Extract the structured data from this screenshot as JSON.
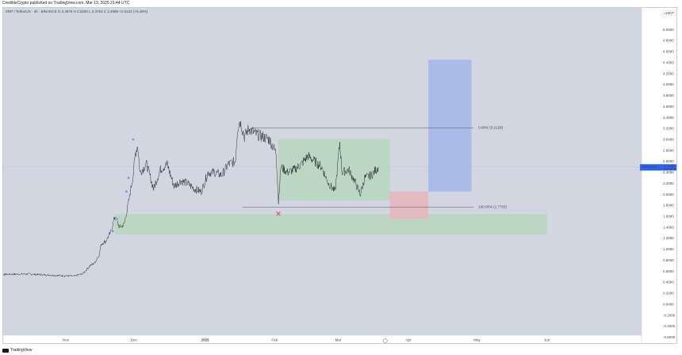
{
  "header": {
    "published_by": "CredibleCrypto published on TradingView.com, Mar 19, 2025 21:44 UTC",
    "symbol_line": "XRP / TetherUS · 4h · BINANCE",
    "ohlc": "O 2.4976  H 2.5200  L 2.4763  C 2.4988  +0.0122 (+0.49%)"
  },
  "footer": {
    "brand": "TradingView"
  },
  "chart_data": {
    "type": "line",
    "title": "XRP / TetherUS · 4h · BINANCE",
    "currency_label": "USDT",
    "y_ticks": [
      "5.2000",
      "5.0000",
      "4.8000",
      "4.6000",
      "4.4000",
      "4.2000",
      "4.0000",
      "3.8000",
      "3.6000",
      "3.4000",
      "3.2000",
      "3.0000",
      "2.8000",
      "2.6000",
      "2.4000",
      "2.2000",
      "2.0000",
      "1.8000",
      "1.6000",
      "1.4000",
      "1.2000",
      "1.0000",
      "0.8000",
      "0.6000",
      "0.4000",
      "0.2000",
      "0.0000",
      "-0.2000",
      "-0.4000",
      "-0.6000"
    ],
    "y_range": [
      -0.6,
      5.2
    ],
    "x_ticks": [
      "Nov",
      "Dec",
      "2025",
      "Feb",
      "Mar",
      "Apr",
      "May",
      "Jun"
    ],
    "price_label": {
      "symbol": "XRPUSDT",
      "price": "2.4988",
      "countdown": "01:16:21"
    },
    "fib_levels": [
      {
        "label": "0.00% (3.2129)",
        "value": 3.2129
      },
      {
        "label": "100.00% (1.7703)",
        "value": 1.7703
      }
    ],
    "current_price": 2.4988,
    "series": [
      {
        "values_approx": [
          [
            "Oct 01",
            0.54
          ],
          [
            "Oct 15",
            0.55
          ],
          [
            "Oct 31",
            0.52
          ],
          [
            "Nov 05",
            0.51
          ],
          [
            "Nov 09",
            0.56
          ],
          [
            "Nov 12",
            0.7
          ],
          [
            "Nov 14",
            0.75
          ],
          [
            "Nov 16",
            0.9
          ],
          [
            "Nov 17",
            1.1
          ],
          [
            "Nov 19",
            1.15
          ],
          [
            "Nov 21",
            1.3
          ],
          [
            "Nov 22",
            1.45
          ],
          [
            "Nov 23",
            1.6
          ],
          [
            "Nov 25",
            1.4
          ],
          [
            "Nov 27",
            1.45
          ],
          [
            "Nov 29",
            1.85
          ],
          [
            "Dec 01",
            2.35
          ],
          [
            "Dec 02",
            2.75
          ],
          [
            "Dec 03",
            2.9
          ],
          [
            "Dec 04",
            2.4
          ],
          [
            "Dec 07",
            2.55
          ],
          [
            "Dec 10",
            2.1
          ],
          [
            "Dec 13",
            2.45
          ],
          [
            "Dec 16",
            2.55
          ],
          [
            "Dec 19",
            2.15
          ],
          [
            "Dec 22",
            2.25
          ],
          [
            "Dec 25",
            2.2
          ],
          [
            "Dec 28",
            2.1
          ],
          [
            "Dec 31",
            2.05
          ],
          [
            "Jan 03",
            2.4
          ],
          [
            "Jan 06",
            2.4
          ],
          [
            "Jan 09",
            2.35
          ],
          [
            "Jan 12",
            2.55
          ],
          [
            "Jan 15",
            2.6
          ],
          [
            "Jan 16",
            3.2
          ],
          [
            "Jan 17",
            3.35
          ],
          [
            "Jan 19",
            3.05
          ],
          [
            "Jan 21",
            3.2
          ],
          [
            "Jan 24",
            3.1
          ],
          [
            "Jan 27",
            3.05
          ],
          [
            "Jan 30",
            3.0
          ],
          [
            "Feb 02",
            2.75
          ],
          [
            "Feb 03",
            1.85
          ],
          [
            "Feb 04",
            2.5
          ],
          [
            "Feb 07",
            2.4
          ],
          [
            "Feb 10",
            2.45
          ],
          [
            "Feb 13",
            2.55
          ],
          [
            "Feb 16",
            2.7
          ],
          [
            "Feb 19",
            2.6
          ],
          [
            "Feb 22",
            2.5
          ],
          [
            "Feb 25",
            2.2
          ],
          [
            "Feb 28",
            2.05
          ],
          [
            "Mar 02",
            2.95
          ],
          [
            "Mar 03",
            2.4
          ],
          [
            "Mar 06",
            2.45
          ],
          [
            "Mar 09",
            2.2
          ],
          [
            "Mar 11",
            2.0
          ],
          [
            "Mar 13",
            2.3
          ],
          [
            "Mar 16",
            2.35
          ],
          [
            "Mar 18",
            2.45
          ],
          [
            "Mar 19",
            2.5
          ]
        ]
      }
    ],
    "markers": [
      {
        "type": "x-cross",
        "date": "Feb 03",
        "value": 1.65
      },
      {
        "type": "event",
        "date": "Mar 22",
        "value": -0.72
      }
    ]
  },
  "colors": {
    "background": "#d2d6e1",
    "green_zone": "#b7d7bd",
    "red_zone": "#e6b7bf",
    "blue_zone": "#a6b8e8",
    "price_line": "#131722",
    "label_blue": "#2962ff",
    "grid": "#c7cbd6",
    "fib_line": "#555555",
    "cross": "#e03d4f",
    "dot": "#7fa0d6"
  }
}
